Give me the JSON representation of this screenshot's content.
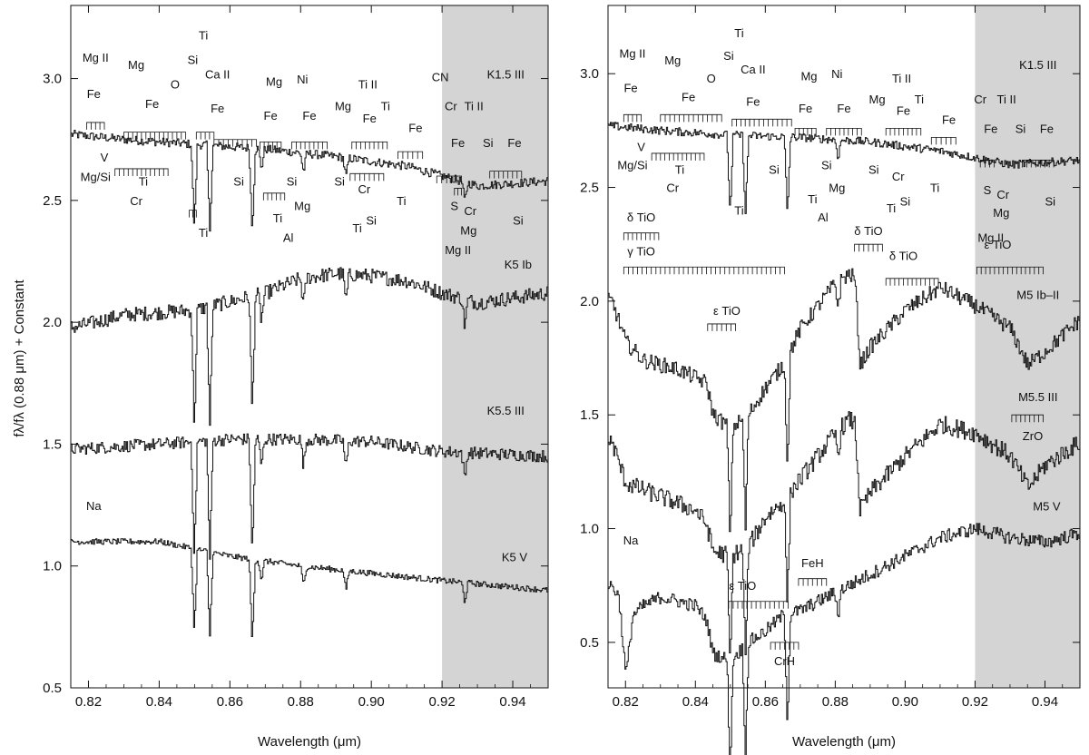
{
  "figure": {
    "ylabel": "fλ/fλ (0.88 μm) + Constant",
    "shade_color": "#d4d4d4",
    "line_color": "#111111"
  },
  "chart_data": [
    {
      "type": "line",
      "panel": "left",
      "xlabel": "Wavelength (μm)",
      "xlim": [
        0.815,
        0.95
      ],
      "ylim": [
        0.5,
        3.3
      ],
      "xticks": [
        "0.82",
        "0.84",
        "0.86",
        "0.88",
        "0.90",
        "0.92",
        "0.94"
      ],
      "yticks": [
        "0.5",
        "1.0",
        "1.5",
        "2.0",
        "2.5",
        "3.0"
      ],
      "shaded_region": [
        0.92,
        0.95
      ],
      "series": [
        {
          "name": "K1.5 III",
          "base": 2.76,
          "slope": -0.0012,
          "curv": 0.0,
          "noise": 0.018,
          "x": [
            0.816,
            0.83,
            0.85,
            0.87,
            0.89,
            0.91,
            0.92,
            0.93,
            0.95
          ],
          "y": [
            2.77,
            2.75,
            2.73,
            2.71,
            2.68,
            2.64,
            2.6,
            2.56,
            2.58
          ]
        },
        {
          "name": "K5 Ib",
          "base": 2.0,
          "slope": 0.0,
          "curv": 0.0,
          "noise": 0.03,
          "x": [
            0.816,
            0.83,
            0.85,
            0.87,
            0.88,
            0.89,
            0.9,
            0.91,
            0.92,
            0.93,
            0.95
          ],
          "y": [
            1.98,
            2.03,
            2.05,
            2.12,
            2.18,
            2.2,
            2.19,
            2.17,
            2.12,
            2.08,
            2.12
          ]
        },
        {
          "name": "K5.5 III",
          "base": 1.48,
          "slope": 0.0,
          "curv": 0.0,
          "noise": 0.025,
          "x": [
            0.816,
            0.84,
            0.86,
            0.88,
            0.9,
            0.92,
            0.95
          ],
          "y": [
            1.48,
            1.5,
            1.52,
            1.52,
            1.51,
            1.47,
            1.45
          ]
        },
        {
          "name": "K5 V",
          "base": 1.08,
          "slope": 0.0,
          "curv": 0.0,
          "noise": 0.012,
          "x": [
            0.816,
            0.84,
            0.86,
            0.88,
            0.9,
            0.92,
            0.95
          ],
          "y": [
            1.1,
            1.1,
            1.04,
            1.0,
            0.97,
            0.94,
            0.9
          ]
        }
      ],
      "absorption_lines": [
        0.8498,
        0.8542,
        0.8662,
        0.8807,
        0.8688,
        0.8927,
        0.9263
      ],
      "annotations": [
        {
          "text": "Mg II",
          "x": 0.822,
          "y": 3.07
        },
        {
          "text": "Mg",
          "x": 0.8335,
          "y": 3.04
        },
        {
          "text": "O",
          "x": 0.8445,
          "y": 2.96
        },
        {
          "text": "Fe",
          "x": 0.8215,
          "y": 2.92
        },
        {
          "text": "Fe",
          "x": 0.838,
          "y": 2.88
        },
        {
          "text": "Ti",
          "x": 0.8525,
          "y": 3.16
        },
        {
          "text": "Si",
          "x": 0.8495,
          "y": 3.06
        },
        {
          "text": "Ca II",
          "x": 0.8565,
          "y": 3.0
        },
        {
          "text": "Fe",
          "x": 0.8565,
          "y": 2.86
        },
        {
          "text": "Mg",
          "x": 0.8725,
          "y": 2.97
        },
        {
          "text": "Ni",
          "x": 0.8805,
          "y": 2.98
        },
        {
          "text": "Fe",
          "x": 0.8715,
          "y": 2.83
        },
        {
          "text": "Fe",
          "x": 0.8825,
          "y": 2.83
        },
        {
          "text": "Mg",
          "x": 0.892,
          "y": 2.87
        },
        {
          "text": "Ti II",
          "x": 0.899,
          "y": 2.96
        },
        {
          "text": "Ti",
          "x": 0.904,
          "y": 2.87
        },
        {
          "text": "Fe",
          "x": 0.8995,
          "y": 2.82
        },
        {
          "text": "Fe",
          "x": 0.9125,
          "y": 2.78
        },
        {
          "text": "CN",
          "x": 0.9195,
          "y": 2.99
        },
        {
          "text": "Cr",
          "x": 0.9225,
          "y": 2.87
        },
        {
          "text": "Ti II",
          "x": 0.929,
          "y": 2.87
        },
        {
          "text": "Fe",
          "x": 0.9245,
          "y": 2.72
        },
        {
          "text": "Si",
          "x": 0.933,
          "y": 2.72
        },
        {
          "text": "Fe",
          "x": 0.9405,
          "y": 2.72
        },
        {
          "text": "K1.5 III",
          "x": 0.938,
          "y": 3.0
        },
        {
          "text": "V",
          "x": 0.8245,
          "y": 2.66
        },
        {
          "text": "Mg/Si",
          "x": 0.822,
          "y": 2.58
        },
        {
          "text": "Ti",
          "x": 0.8355,
          "y": 2.56
        },
        {
          "text": "Cr",
          "x": 0.8335,
          "y": 2.48
        },
        {
          "text": "Si",
          "x": 0.8625,
          "y": 2.56
        },
        {
          "text": "Si",
          "x": 0.8775,
          "y": 2.56
        },
        {
          "text": "Si",
          "x": 0.891,
          "y": 2.56
        },
        {
          "text": "Ti",
          "x": 0.8525,
          "y": 2.35
        },
        {
          "text": "Ti",
          "x": 0.8735,
          "y": 2.41
        },
        {
          "text": "Mg",
          "x": 0.8805,
          "y": 2.46
        },
        {
          "text": "Al",
          "x": 0.8765,
          "y": 2.33
        },
        {
          "text": "Cr",
          "x": 0.898,
          "y": 2.53
        },
        {
          "text": "Ti",
          "x": 0.9085,
          "y": 2.48
        },
        {
          "text": "Si",
          "x": 0.9,
          "y": 2.4
        },
        {
          "text": "Ti",
          "x": 0.896,
          "y": 2.37
        },
        {
          "text": "S",
          "x": 0.9235,
          "y": 2.46
        },
        {
          "text": "Cr",
          "x": 0.928,
          "y": 2.44
        },
        {
          "text": "Mg",
          "x": 0.9275,
          "y": 2.36
        },
        {
          "text": "Mg II",
          "x": 0.9245,
          "y": 2.28
        },
        {
          "text": "Si",
          "x": 0.9415,
          "y": 2.4
        },
        {
          "text": "K5 Ib",
          "x": 0.9415,
          "y": 2.22
        },
        {
          "text": "K5.5 III",
          "x": 0.938,
          "y": 1.62
        },
        {
          "text": "Na",
          "x": 0.8215,
          "y": 1.23
        },
        {
          "text": "K5 V",
          "x": 0.9405,
          "y": 1.02
        }
      ],
      "brackets": [
        {
          "x1": 0.8195,
          "x2": 0.8245,
          "y": 2.82
        },
        {
          "x1": 0.83,
          "x2": 0.8475,
          "y": 2.78
        },
        {
          "x1": 0.8505,
          "x2": 0.8555,
          "y": 2.78
        },
        {
          "x1": 0.8555,
          "x2": 0.8675,
          "y": 2.75
        },
        {
          "x1": 0.8685,
          "x2": 0.8745,
          "y": 2.74
        },
        {
          "x1": 0.8775,
          "x2": 0.8875,
          "y": 2.74
        },
        {
          "x1": 0.8945,
          "x2": 0.9045,
          "y": 2.74
        },
        {
          "x1": 0.9075,
          "x2": 0.9145,
          "y": 2.7
        },
        {
          "x1": 0.9185,
          "x2": 0.9255,
          "y": 2.6
        },
        {
          "x1": 0.9335,
          "x2": 0.9425,
          "y": 2.62
        },
        {
          "x1": 0.8275,
          "x2": 0.8425,
          "y": 2.63
        },
        {
          "x1": 0.8485,
          "x2": 0.8505,
          "y": 2.46
        },
        {
          "x1": 0.8695,
          "x2": 0.8755,
          "y": 2.53
        },
        {
          "x1": 0.894,
          "x2": 0.9035,
          "y": 2.61
        },
        {
          "x1": 0.9235,
          "x2": 0.9255,
          "y": 2.55
        }
      ]
    },
    {
      "type": "line",
      "panel": "right",
      "xlabel": "Wavelength (μm)",
      "xlim": [
        0.815,
        0.95
      ],
      "ylim": [
        0.3,
        3.3
      ],
      "xticks": [
        "0.82",
        "0.84",
        "0.86",
        "0.88",
        "0.90",
        "0.92",
        "0.94"
      ],
      "yticks": [
        "0.5",
        "1.0",
        "1.5",
        "2.0",
        "2.5",
        "3.0"
      ],
      "shaded_region": [
        0.92,
        0.95
      ],
      "series": [
        {
          "name": "K1.5 III",
          "base": 2.76,
          "slope": -0.0012,
          "curv": 0.0,
          "noise": 0.018,
          "x": [
            0.816,
            0.83,
            0.85,
            0.87,
            0.89,
            0.91,
            0.92,
            0.93,
            0.95
          ],
          "y": [
            2.77,
            2.75,
            2.73,
            2.72,
            2.7,
            2.66,
            2.63,
            2.6,
            2.62
          ]
        },
        {
          "name": "M5 Ib–II",
          "base": 0.0,
          "slope": 0.0,
          "curv": 0.0,
          "noise": 0.035,
          "x": [
            0.816,
            0.82,
            0.825,
            0.835,
            0.843,
            0.845,
            0.85,
            0.855,
            0.86,
            0.865,
            0.87,
            0.875,
            0.88,
            0.884,
            0.8855,
            0.887,
            0.89,
            0.9,
            0.91,
            0.92,
            0.93,
            0.935,
            0.94,
            0.95
          ],
          "y": [
            2.0,
            1.82,
            1.74,
            1.7,
            1.64,
            1.5,
            1.44,
            1.5,
            1.62,
            1.72,
            1.88,
            1.98,
            2.08,
            2.12,
            2.1,
            1.72,
            1.8,
            1.96,
            2.06,
            1.98,
            1.88,
            1.72,
            1.78,
            1.92
          ]
        },
        {
          "name": "M5.5 III",
          "base": 0.0,
          "slope": 0.0,
          "curv": 0.0,
          "noise": 0.04,
          "x": [
            0.816,
            0.82,
            0.83,
            0.84,
            0.843,
            0.845,
            0.85,
            0.855,
            0.86,
            0.865,
            0.87,
            0.875,
            0.88,
            0.884,
            0.8855,
            0.887,
            0.89,
            0.9,
            0.91,
            0.92,
            0.93,
            0.935,
            0.94,
            0.95
          ],
          "y": [
            1.38,
            1.2,
            1.14,
            1.08,
            1.02,
            0.9,
            0.88,
            0.92,
            1.05,
            1.12,
            1.22,
            1.32,
            1.42,
            1.48,
            1.46,
            1.08,
            1.16,
            1.32,
            1.46,
            1.42,
            1.32,
            1.18,
            1.28,
            1.38
          ]
        },
        {
          "name": "M5 V",
          "base": 0.0,
          "slope": 0.0,
          "curv": 0.0,
          "noise": 0.03,
          "x": [
            0.816,
            0.818,
            0.82,
            0.822,
            0.825,
            0.83,
            0.84,
            0.843,
            0.845,
            0.85,
            0.855,
            0.86,
            0.865,
            0.87,
            0.88,
            0.89,
            0.9,
            0.91,
            0.92,
            0.93,
            0.94,
            0.95
          ],
          "y": [
            0.75,
            0.7,
            0.35,
            0.62,
            0.66,
            0.7,
            0.66,
            0.6,
            0.45,
            0.42,
            0.5,
            0.55,
            0.62,
            0.64,
            0.72,
            0.8,
            0.88,
            0.96,
            1.0,
            0.96,
            0.94,
            0.98
          ]
        }
      ],
      "absorption_lines": [
        0.8498,
        0.8542,
        0.8662,
        0.8807
      ],
      "annotations": [
        {
          "text": "Mg II",
          "x": 0.822,
          "y": 3.07
        },
        {
          "text": "Mg",
          "x": 0.8335,
          "y": 3.04
        },
        {
          "text": "O",
          "x": 0.8445,
          "y": 2.96
        },
        {
          "text": "Fe",
          "x": 0.8215,
          "y": 2.92
        },
        {
          "text": "Fe",
          "x": 0.838,
          "y": 2.88
        },
        {
          "text": "Ti",
          "x": 0.8525,
          "y": 3.16
        },
        {
          "text": "Si",
          "x": 0.8495,
          "y": 3.06
        },
        {
          "text": "Ca II",
          "x": 0.8565,
          "y": 3.0
        },
        {
          "text": "Fe",
          "x": 0.8565,
          "y": 2.86
        },
        {
          "text": "Mg",
          "x": 0.8725,
          "y": 2.97
        },
        {
          "text": "Ni",
          "x": 0.8805,
          "y": 2.98
        },
        {
          "text": "Fe",
          "x": 0.8715,
          "y": 2.83
        },
        {
          "text": "Fe",
          "x": 0.8825,
          "y": 2.83
        },
        {
          "text": "Mg",
          "x": 0.892,
          "y": 2.87
        },
        {
          "text": "Ti II",
          "x": 0.899,
          "y": 2.96
        },
        {
          "text": "Ti",
          "x": 0.904,
          "y": 2.87
        },
        {
          "text": "Fe",
          "x": 0.8995,
          "y": 2.82
        },
        {
          "text": "Fe",
          "x": 0.9125,
          "y": 2.78
        },
        {
          "text": "Cr",
          "x": 0.9215,
          "y": 2.87
        },
        {
          "text": "Ti II",
          "x": 0.929,
          "y": 2.87
        },
        {
          "text": "Fe",
          "x": 0.9245,
          "y": 2.74
        },
        {
          "text": "Si",
          "x": 0.933,
          "y": 2.74
        },
        {
          "text": "Fe",
          "x": 0.9405,
          "y": 2.74
        },
        {
          "text": "K1.5 III",
          "x": 0.938,
          "y": 3.02
        },
        {
          "text": "V",
          "x": 0.8245,
          "y": 2.66
        },
        {
          "text": "Mg/Si",
          "x": 0.822,
          "y": 2.58
        },
        {
          "text": "Ti",
          "x": 0.8355,
          "y": 2.56
        },
        {
          "text": "Cr",
          "x": 0.8335,
          "y": 2.48
        },
        {
          "text": "Si",
          "x": 0.8625,
          "y": 2.56
        },
        {
          "text": "Si",
          "x": 0.8775,
          "y": 2.58
        },
        {
          "text": "Si",
          "x": 0.891,
          "y": 2.56
        },
        {
          "text": "Ti",
          "x": 0.8525,
          "y": 2.38
        },
        {
          "text": "Ti",
          "x": 0.8735,
          "y": 2.43
        },
        {
          "text": "Mg",
          "x": 0.8805,
          "y": 2.48
        },
        {
          "text": "Al",
          "x": 0.8765,
          "y": 2.35
        },
        {
          "text": "Cr",
          "x": 0.898,
          "y": 2.53
        },
        {
          "text": "Ti",
          "x": 0.9085,
          "y": 2.48
        },
        {
          "text": "Si",
          "x": 0.9,
          "y": 2.42
        },
        {
          "text": "Ti",
          "x": 0.896,
          "y": 2.39
        },
        {
          "text": "S",
          "x": 0.9235,
          "y": 2.47
        },
        {
          "text": "Cr",
          "x": 0.928,
          "y": 2.45
        },
        {
          "text": "Mg",
          "x": 0.9275,
          "y": 2.37
        },
        {
          "text": "Mg II",
          "x": 0.9245,
          "y": 2.26
        },
        {
          "text": "Si",
          "x": 0.9415,
          "y": 2.42
        },
        {
          "text": "δ TiO",
          "x": 0.8245,
          "y": 2.35
        },
        {
          "text": "γ TiO",
          "x": 0.8245,
          "y": 2.2
        },
        {
          "text": "δ TiO",
          "x": 0.8895,
          "y": 2.29
        },
        {
          "text": "δ TiO",
          "x": 0.8995,
          "y": 2.18
        },
        {
          "text": "ε TiO",
          "x": 0.9265,
          "y": 2.23
        },
        {
          "text": "ε TiO",
          "x": 0.849,
          "y": 1.94
        },
        {
          "text": "M5 Ib–II",
          "x": 0.938,
          "y": 2.01
        },
        {
          "text": "ZrO",
          "x": 0.9365,
          "y": 1.39
        },
        {
          "text": "M5.5 III",
          "x": 0.938,
          "y": 1.56
        },
        {
          "text": "M5 V",
          "x": 0.9405,
          "y": 1.08
        },
        {
          "text": "Na",
          "x": 0.8215,
          "y": 0.93
        },
        {
          "text": "FeH",
          "x": 0.8735,
          "y": 0.83
        },
        {
          "text": "ε TiO",
          "x": 0.8535,
          "y": 0.73
        },
        {
          "text": "CrH",
          "x": 0.8655,
          "y": 0.4
        }
      ],
      "brackets": [
        {
          "x1": 0.8195,
          "x2": 0.8245,
          "y": 2.82
        },
        {
          "x1": 0.83,
          "x2": 0.8475,
          "y": 2.82
        },
        {
          "x1": 0.8505,
          "x2": 0.8555,
          "y": 2.8
        },
        {
          "x1": 0.8555,
          "x2": 0.8675,
          "y": 2.8
        },
        {
          "x1": 0.8685,
          "x2": 0.8745,
          "y": 2.76
        },
        {
          "x1": 0.8775,
          "x2": 0.8875,
          "y": 2.76
        },
        {
          "x1": 0.8945,
          "x2": 0.9045,
          "y": 2.76
        },
        {
          "x1": 0.9075,
          "x2": 0.9145,
          "y": 2.72
        },
        {
          "x1": 0.9215,
          "x2": 0.9255,
          "y": 2.62
        },
        {
          "x1": 0.9335,
          "x2": 0.9425,
          "y": 2.62
        },
        {
          "x1": 0.8275,
          "x2": 0.8425,
          "y": 2.65
        },
        {
          "x1": 0.8195,
          "x2": 0.8295,
          "y": 2.3
        },
        {
          "x1": 0.8195,
          "x2": 0.8655,
          "y": 2.15
        },
        {
          "x1": 0.8855,
          "x2": 0.8935,
          "y": 2.25
        },
        {
          "x1": 0.8945,
          "x2": 0.9095,
          "y": 2.1
        },
        {
          "x1": 0.9205,
          "x2": 0.9395,
          "y": 2.15
        },
        {
          "x1": 0.8435,
          "x2": 0.8515,
          "y": 1.9
        },
        {
          "x1": 0.9305,
          "x2": 0.9395,
          "y": 1.5
        },
        {
          "x1": 0.8695,
          "x2": 0.8775,
          "y": 0.78
        },
        {
          "x1": 0.8495,
          "x2": 0.8665,
          "y": 0.68
        },
        {
          "x1": 0.8615,
          "x2": 0.8695,
          "y": 0.5
        }
      ]
    }
  ]
}
